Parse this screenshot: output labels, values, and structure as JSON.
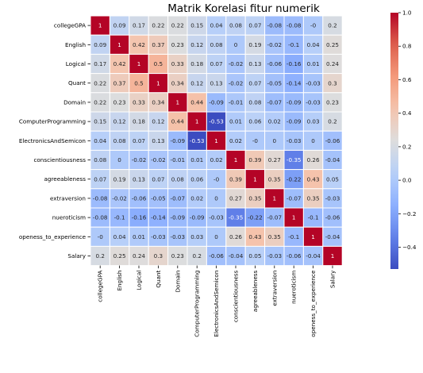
{
  "chart_data": {
    "type": "heatmap",
    "title": "Matrik Korelasi fitur numerik",
    "xlabel": "",
    "ylabel": "",
    "labels": [
      "collegeGPA",
      "English",
      "Logical",
      "Quant",
      "Domain",
      "ComputerProgramming",
      "ElectronicsAndSemicon",
      "conscientiousness",
      "agreeableness",
      "extraversion",
      "nueroticism",
      "openess_to_experience",
      "Salary"
    ],
    "matrix": [
      [
        "1",
        "0.09",
        "0.17",
        "0.22",
        "0.22",
        "0.15",
        "0.04",
        "0.08",
        "0.07",
        "-0.08",
        "-0.08",
        "-0",
        "0.2"
      ],
      [
        "0.09",
        "1",
        "0.42",
        "0.37",
        "0.23",
        "0.12",
        "0.08",
        "0",
        "0.19",
        "-0.02",
        "-0.1",
        "0.04",
        "0.25"
      ],
      [
        "0.17",
        "0.42",
        "1",
        "0.5",
        "0.33",
        "0.18",
        "0.07",
        "-0.02",
        "0.13",
        "-0.06",
        "-0.16",
        "0.01",
        "0.24"
      ],
      [
        "0.22",
        "0.37",
        "0.5",
        "1",
        "0.34",
        "0.12",
        "0.13",
        "-0.02",
        "0.07",
        "-0.05",
        "-0.14",
        "-0.03",
        "0.3"
      ],
      [
        "0.22",
        "0.23",
        "0.33",
        "0.34",
        "1",
        "0.44",
        "-0.09",
        "-0.01",
        "0.08",
        "-0.07",
        "-0.09",
        "-0.03",
        "0.23"
      ],
      [
        "0.15",
        "0.12",
        "0.18",
        "0.12",
        "0.44",
        "1",
        "-0.53",
        "0.01",
        "0.06",
        "0.02",
        "-0.09",
        "0.03",
        "0.2"
      ],
      [
        "0.04",
        "0.08",
        "0.07",
        "0.13",
        "-0.09",
        "-0.53",
        "1",
        "0.02",
        "-0",
        "0",
        "-0.03",
        "0",
        "-0.06"
      ],
      [
        "0.08",
        "0",
        "-0.02",
        "-0.02",
        "-0.01",
        "0.01",
        "0.02",
        "1",
        "0.39",
        "0.27",
        "-0.35",
        "0.26",
        "-0.04"
      ],
      [
        "0.07",
        "0.19",
        "0.13",
        "0.07",
        "0.08",
        "0.06",
        "-0",
        "0.39",
        "1",
        "0.35",
        "-0.22",
        "0.43",
        "0.05"
      ],
      [
        "-0.08",
        "-0.02",
        "-0.06",
        "-0.05",
        "-0.07",
        "0.02",
        "0",
        "0.27",
        "0.35",
        "1",
        "-0.07",
        "0.35",
        "-0.03"
      ],
      [
        "-0.08",
        "-0.1",
        "-0.16",
        "-0.14",
        "-0.09",
        "-0.09",
        "-0.03",
        "-0.35",
        "-0.22",
        "-0.07",
        "1",
        "-0.1",
        "-0.06"
      ],
      [
        "-0",
        "0.04",
        "0.01",
        "-0.03",
        "-0.03",
        "0.03",
        "0",
        "0.26",
        "0.43",
        "0.35",
        "-0.1",
        "1",
        "-0.04"
      ],
      [
        "0.2",
        "0.25",
        "0.24",
        "0.3",
        "0.23",
        "0.2",
        "-0.06",
        "-0.04",
        "0.05",
        "-0.03",
        "-0.06",
        "-0.04",
        "1"
      ]
    ],
    "colorbar": {
      "colormap": "coolwarm",
      "vmin": -0.53,
      "vmax": 1.0,
      "ticks": [
        "1.0",
        "0.8",
        "0.6",
        "0.4",
        "0.2",
        "0.0",
        "−0.2",
        "−0.4"
      ],
      "tick_values": [
        1.0,
        0.8,
        0.6,
        0.4,
        0.2,
        0.0,
        -0.2,
        -0.4
      ]
    },
    "annotated": true,
    "grid_lines": "white",
    "legend": "colorbar-right"
  }
}
